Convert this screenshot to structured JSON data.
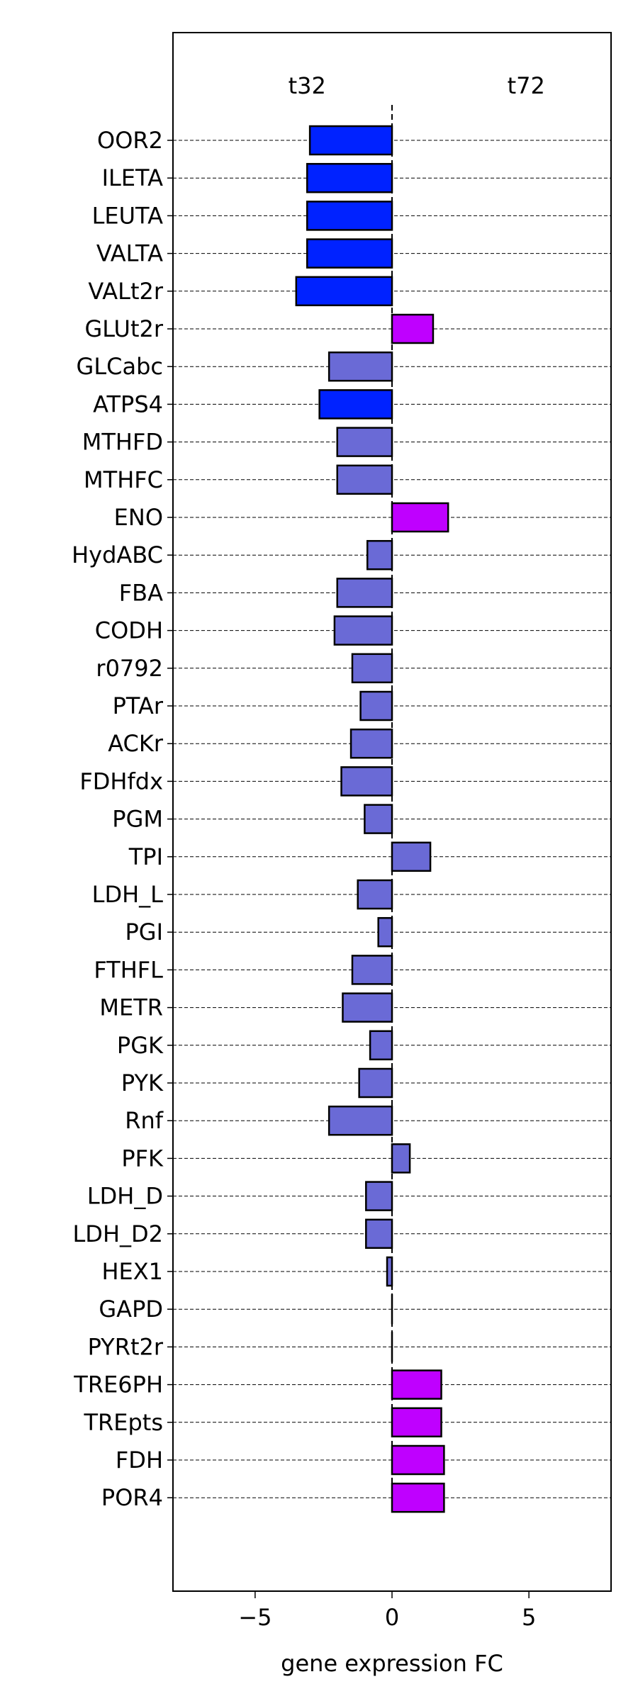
{
  "chart_data": {
    "type": "bar",
    "orientation": "horizontal",
    "title": "",
    "xlabel": "gene expression FC",
    "ylabel": "",
    "xlim": [
      -8,
      8
    ],
    "xticks": [
      -5,
      0,
      5
    ],
    "xtick_labels": [
      "−5",
      "0",
      "5"
    ],
    "top_labels": [
      {
        "text": "t32",
        "x": -3.1
      },
      {
        "text": "t72",
        "x": 4.9
      }
    ],
    "grid": "dashed horizontal line per row",
    "colors": {
      "strong_blue": "#0022ff",
      "medium_purple": "#6a6ad6",
      "magenta": "#bf00ff",
      "edge": "#000000"
    },
    "bars": [
      {
        "label": "OOR2",
        "value": -3.0,
        "color": "strong_blue"
      },
      {
        "label": "ILETA",
        "value": -3.1,
        "color": "strong_blue"
      },
      {
        "label": "LEUTA",
        "value": -3.1,
        "color": "strong_blue"
      },
      {
        "label": "VALTA",
        "value": -3.1,
        "color": "strong_blue"
      },
      {
        "label": "VALt2r",
        "value": -3.5,
        "color": "strong_blue"
      },
      {
        "label": "GLUt2r",
        "value": 1.5,
        "color": "magenta"
      },
      {
        "label": "GLCabc",
        "value": -2.3,
        "color": "medium_purple"
      },
      {
        "label": "ATPS4",
        "value": -2.65,
        "color": "strong_blue"
      },
      {
        "label": "MTHFD",
        "value": -2.0,
        "color": "medium_purple"
      },
      {
        "label": "MTHFC",
        "value": -2.0,
        "color": "medium_purple"
      },
      {
        "label": "ENO",
        "value": 2.05,
        "color": "magenta"
      },
      {
        "label": "HydABC",
        "value": -0.9,
        "color": "medium_purple"
      },
      {
        "label": "FBA",
        "value": -2.0,
        "color": "medium_purple"
      },
      {
        "label": "CODH",
        "value": -2.1,
        "color": "medium_purple"
      },
      {
        "label": "r0792",
        "value": -1.45,
        "color": "medium_purple"
      },
      {
        "label": "PTAr",
        "value": -1.15,
        "color": "medium_purple"
      },
      {
        "label": "ACKr",
        "value": -1.5,
        "color": "medium_purple"
      },
      {
        "label": "FDHfdx",
        "value": -1.85,
        "color": "medium_purple"
      },
      {
        "label": "PGM",
        "value": -1.0,
        "color": "medium_purple"
      },
      {
        "label": "TPI",
        "value": 1.4,
        "color": "medium_purple"
      },
      {
        "label": "LDH_L",
        "value": -1.25,
        "color": "medium_purple"
      },
      {
        "label": "PGI",
        "value": -0.5,
        "color": "medium_purple"
      },
      {
        "label": "FTHFL",
        "value": -1.45,
        "color": "medium_purple"
      },
      {
        "label": "METR",
        "value": -1.8,
        "color": "medium_purple"
      },
      {
        "label": "PGK",
        "value": -0.8,
        "color": "medium_purple"
      },
      {
        "label": "PYK",
        "value": -1.2,
        "color": "medium_purple"
      },
      {
        "label": "Rnf",
        "value": -2.3,
        "color": "medium_purple"
      },
      {
        "label": "PFK",
        "value": 0.65,
        "color": "medium_purple"
      },
      {
        "label": "LDH_D",
        "value": -0.95,
        "color": "medium_purple"
      },
      {
        "label": "LDH_D2",
        "value": -0.95,
        "color": "medium_purple"
      },
      {
        "label": "HEX1",
        "value": -0.18,
        "color": "medium_purple"
      },
      {
        "label": "GAPD",
        "value": 0.0,
        "color": "medium_purple"
      },
      {
        "label": "PYRt2r",
        "value": 0.0,
        "color": "medium_purple"
      },
      {
        "label": "TRE6PH",
        "value": 1.8,
        "color": "magenta"
      },
      {
        "label": "TREpts",
        "value": 1.8,
        "color": "magenta"
      },
      {
        "label": "FDH",
        "value": 1.9,
        "color": "magenta"
      },
      {
        "label": "POR4",
        "value": 1.9,
        "color": "magenta"
      }
    ]
  }
}
